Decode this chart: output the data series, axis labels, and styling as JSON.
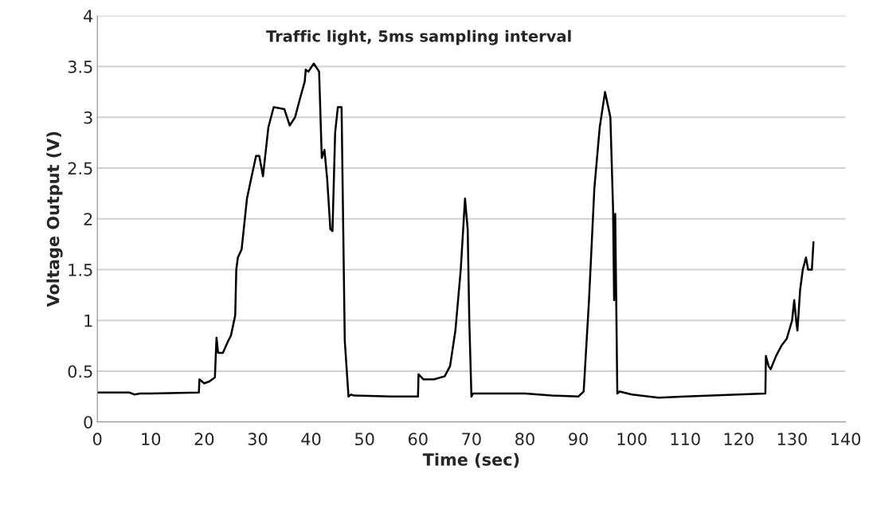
{
  "chart_data": {
    "type": "line",
    "title": "Traffic light, 5ms sampling interval",
    "xlabel": "Time (sec)",
    "ylabel": "Voltage Output (V)",
    "xlim": [
      0,
      140
    ],
    "xticks": [
      0,
      10,
      20,
      30,
      40,
      50,
      60,
      70,
      80,
      90,
      100,
      110,
      120,
      130,
      140
    ],
    "ylim": [
      0,
      4
    ],
    "yticks": [
      0,
      0.5,
      1,
      1.5,
      2,
      2.5,
      3,
      3.5,
      4
    ],
    "grid": "y",
    "marker": "none",
    "line_style": "solid",
    "series": [
      {
        "color": "#000000",
        "x": [
          0,
          6,
          7,
          8,
          10,
          19,
          19.1,
          20,
          21,
          22,
          22.3,
          22.6,
          23.5,
          24.5,
          25,
          25.8,
          26,
          26.3,
          27,
          28,
          29,
          29.7,
          30.3,
          31,
          32,
          33,
          35,
          36,
          37,
          38,
          38.8,
          39,
          39.5,
          40.5,
          41.5,
          42,
          42.5,
          43,
          43.6,
          44,
          44.5,
          45,
          45.7,
          46.3,
          47,
          47.5,
          48,
          55,
          60,
          60.1,
          61,
          63,
          65,
          66,
          67,
          68,
          68.8,
          69.3,
          69.6,
          70,
          70.3,
          80,
          85,
          90,
          91,
          92,
          93,
          94,
          95,
          96,
          96.5,
          96.7,
          96.9,
          97.3,
          97.7,
          100,
          105,
          110,
          120,
          125,
          125.1,
          125.6,
          126,
          127,
          128,
          129,
          130,
          130.4,
          130.8,
          131,
          131.5,
          132,
          132.6,
          133,
          133.7,
          134
        ],
        "values": [
          0.29,
          0.29,
          0.27,
          0.28,
          0.28,
          0.29,
          0.42,
          0.38,
          0.4,
          0.44,
          0.83,
          0.68,
          0.68,
          0.8,
          0.85,
          1.05,
          1.5,
          1.62,
          1.7,
          2.2,
          2.45,
          2.62,
          2.62,
          2.42,
          2.9,
          3.1,
          3.08,
          2.92,
          3.0,
          3.2,
          3.35,
          3.47,
          3.45,
          3.53,
          3.45,
          2.6,
          2.68,
          2.4,
          1.9,
          1.88,
          2.85,
          3.1,
          3.1,
          0.8,
          0.25,
          0.27,
          0.26,
          0.25,
          0.25,
          0.47,
          0.42,
          0.42,
          0.45,
          0.55,
          0.9,
          1.5,
          2.2,
          1.9,
          1.0,
          0.25,
          0.28,
          0.28,
          0.26,
          0.25,
          0.3,
          1.2,
          2.3,
          2.9,
          3.25,
          3.0,
          2.1,
          1.2,
          2.05,
          0.28,
          0.3,
          0.27,
          0.24,
          0.25,
          0.27,
          0.28,
          0.65,
          0.55,
          0.52,
          0.65,
          0.75,
          0.82,
          1.0,
          1.2,
          0.98,
          0.9,
          1.3,
          1.5,
          1.62,
          1.5,
          1.5,
          1.77
        ]
      }
    ]
  }
}
